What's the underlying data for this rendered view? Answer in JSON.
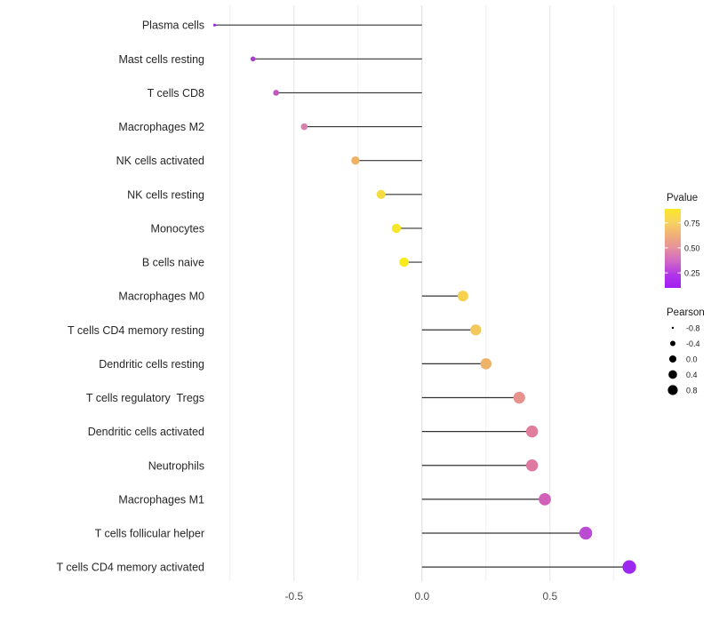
{
  "chart_data": {
    "type": "scatter",
    "subtype": "lollipop",
    "title": "",
    "xlabel": "",
    "ylabel": "",
    "x_tick_labels": [
      "-0.5",
      "0.0",
      "0.5"
    ],
    "x_tick_values": [
      -0.5,
      0.0,
      0.5
    ],
    "x_range": [
      -0.9,
      0.9
    ],
    "grid_major": [
      -0.5,
      0.0,
      0.5
    ],
    "grid_minor": [
      -0.75,
      -0.25,
      0.25,
      0.75
    ],
    "grid_on": true,
    "baseline_x": 0.0,
    "rows": [
      {
        "label": "Plasma cells",
        "pearson": -0.81,
        "pvalue": 0.1,
        "color": "#9330d6"
      },
      {
        "label": "Mast cells resting",
        "pearson": -0.66,
        "pvalue": 0.17,
        "color": "#a73fc9"
      },
      {
        "label": "T cells CD8",
        "pearson": -0.57,
        "pvalue": 0.27,
        "color": "#c156be"
      },
      {
        "label": "Macrophages M2",
        "pearson": -0.46,
        "pvalue": 0.41,
        "color": "#d981ac"
      },
      {
        "label": "NK cells activated",
        "pearson": -0.26,
        "pvalue": 0.63,
        "color": "#f0b164"
      },
      {
        "label": "NK cells resting",
        "pearson": -0.16,
        "pvalue": 0.79,
        "color": "#f4dc40"
      },
      {
        "label": "Monocytes",
        "pearson": -0.1,
        "pvalue": 0.85,
        "color": "#f7e62a"
      },
      {
        "label": "B cells naive",
        "pearson": -0.07,
        "pvalue": 0.88,
        "color": "#f9ea1d"
      },
      {
        "label": "Macrophages M0",
        "pearson": 0.16,
        "pvalue": 0.76,
        "color": "#f5d14e"
      },
      {
        "label": "T cells CD4 memory resting",
        "pearson": 0.21,
        "pvalue": 0.72,
        "color": "#f3c85d"
      },
      {
        "label": "Dendritic cells resting",
        "pearson": 0.25,
        "pvalue": 0.64,
        "color": "#efb269"
      },
      {
        "label": "T cells regulatory  Tregs",
        "pearson": 0.38,
        "pvalue": 0.5,
        "color": "#e8928d"
      },
      {
        "label": "Dendritic cells activated",
        "pearson": 0.43,
        "pvalue": 0.44,
        "color": "#e07d9c"
      },
      {
        "label": "Neutrophils",
        "pearson": 0.43,
        "pvalue": 0.43,
        "color": "#de7aa1"
      },
      {
        "label": "Macrophages M1",
        "pearson": 0.48,
        "pvalue": 0.32,
        "color": "#d160b8"
      },
      {
        "label": "T cells follicular helper",
        "pearson": 0.64,
        "pvalue": 0.21,
        "color": "#bb4bd3"
      },
      {
        "label": "T cells CD4 memory activated",
        "pearson": 0.81,
        "pvalue": 0.1,
        "color": "#9c27ee"
      }
    ],
    "legend_pvalue": {
      "title": "Pvalue",
      "tick_labels": [
        "0.75",
        "0.50",
        "0.25"
      ],
      "tick_values": [
        0.75,
        0.5,
        0.25
      ],
      "bar_range": [
        0.89,
        0.1
      ],
      "gradient_top_to_bottom": [
        "#fce829",
        "#f7d35e",
        "#f0af78",
        "#e58f9e",
        "#d167c6",
        "#b136e8",
        "#a21df4"
      ]
    },
    "legend_pearson": {
      "title": "Pearson",
      "entries": [
        {
          "label": "-0.8",
          "value": -0.8
        },
        {
          "label": "-0.4",
          "value": -0.4
        },
        {
          "label": "0.0",
          "value": 0.0
        },
        {
          "label": "0.4",
          "value": 0.4
        },
        {
          "label": "0.8",
          "value": 0.8
        }
      ],
      "dot_color": "#000000"
    },
    "style_colors": {
      "stick": "#333333",
      "grid_major": "#e4e4e4",
      "grid_minor": "#f1f1f1",
      "zero_line": "#d8d8d8",
      "background": "#ffffff"
    }
  }
}
